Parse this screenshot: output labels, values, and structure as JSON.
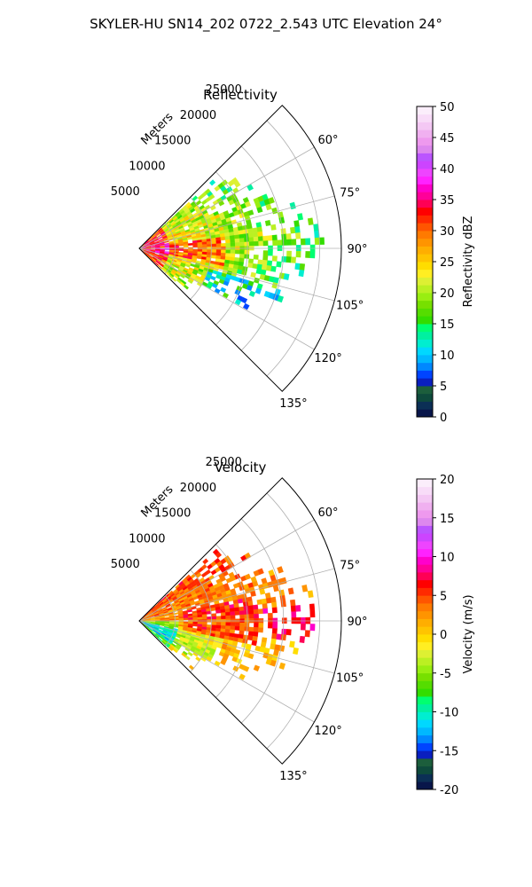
{
  "figure": {
    "suptitle": "SKYLER-HU  SN14_202  0722_2.543 UTC Elevation 24°"
  },
  "chart_data": [
    {
      "type": "heatmap",
      "projection": "polar-sector",
      "title": "Reflectivity",
      "range_label": "Meters",
      "theta_range_deg": [
        45,
        135
      ],
      "r_range": [
        0,
        28000
      ],
      "grid": true,
      "radial_ticks": [
        "5000",
        "10000",
        "15000",
        "20000",
        "25000"
      ],
      "angle_ticks": [
        "60°",
        "75°",
        "90°",
        "105°",
        "120°",
        "135°"
      ],
      "colorbar": {
        "label": "Reflectivity dBZ",
        "vmin": 0,
        "vmax": 50,
        "ticks": [
          "0",
          "5",
          "10",
          "15",
          "20",
          "25",
          "30",
          "35",
          "40",
          "45",
          "50"
        ],
        "colors": [
          "#08164a",
          "#0b2f55",
          "#0e4a3c",
          "#1c5e3c",
          "#0a1fbf",
          "#0044ff",
          "#0088ff",
          "#00b8ff",
          "#00d8ff",
          "#00eed0",
          "#00f0a0",
          "#00ff70",
          "#33dd00",
          "#55dd00",
          "#77e000",
          "#99ee11",
          "#bbf022",
          "#ddf033",
          "#ffee22",
          "#ffdd00",
          "#ffc400",
          "#ffae00",
          "#ff9400",
          "#ff7a00",
          "#ff5500",
          "#ff2a00",
          "#ff0000",
          "#ff0055",
          "#ff0099",
          "#ff00cc",
          "#ff22ff",
          "#ee44ff",
          "#cc44ff",
          "#bb55ff",
          "#dd88ee",
          "#ee99ee",
          "#f0b0f0",
          "#f4c8f4",
          "#f8dcf8",
          "#fbeefb"
        ]
      },
      "echo_summary": "Echoes within ~25 km, strongest (30–40 dBZ) near the radar and along the 90–100° radials, weaker 10–20 dBZ fringes at 12–25 km"
    },
    {
      "type": "heatmap",
      "projection": "polar-sector",
      "title": "Velocity",
      "range_label": "Meters",
      "theta_range_deg": [
        45,
        135
      ],
      "r_range": [
        0,
        28000
      ],
      "grid": true,
      "radial_ticks": [
        "5000",
        "10000",
        "15000",
        "20000",
        "25000"
      ],
      "angle_ticks": [
        "60°",
        "75°",
        "90°",
        "105°",
        "120°",
        "135°"
      ],
      "colorbar": {
        "label": "Velocity (m/s)",
        "vmin": -20,
        "vmax": 20,
        "ticks": [
          "-20",
          "-15",
          "-10",
          "-5",
          "0",
          "5",
          "10",
          "15",
          "20"
        ],
        "colors": [
          "#08164a",
          "#0b2f55",
          "#0e4a3c",
          "#1c5e3c",
          "#0a1fbf",
          "#0044ff",
          "#0088ff",
          "#00b8ff",
          "#00d8ff",
          "#00eed0",
          "#00f0a0",
          "#00ff70",
          "#33dd00",
          "#55dd00",
          "#77e000",
          "#99ee11",
          "#bbf022",
          "#ddf033",
          "#ffee22",
          "#ffdd00",
          "#ffc400",
          "#ffae00",
          "#ff9400",
          "#ff7a00",
          "#ff5500",
          "#ff2a00",
          "#ff0000",
          "#ff0055",
          "#ff0099",
          "#ff00cc",
          "#ff22ff",
          "#ee44ff",
          "#cc44ff",
          "#bb55ff",
          "#dd88ee",
          "#ee99ee",
          "#f0b0f0",
          "#f4c8f4",
          "#f8dcf8",
          "#fbeefb"
        ]
      },
      "echo_summary": "Mostly 0 to +5 m/s (yellow/orange) with receding +10 m/s patches near 90°, approaching -5 to -10 m/s (green) toward 110–130°"
    }
  ]
}
